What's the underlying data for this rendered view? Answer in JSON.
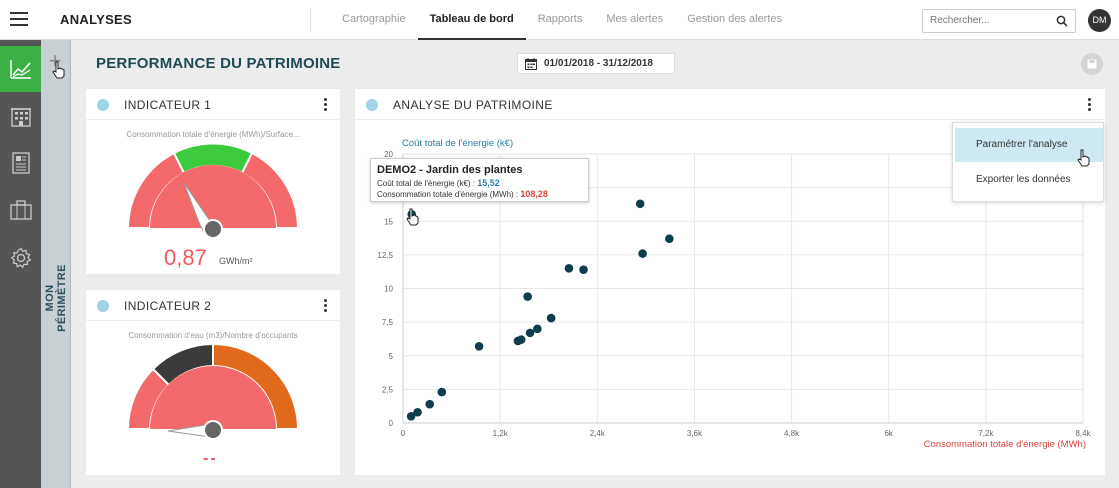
{
  "app": {
    "title": "ANALYSES"
  },
  "nav": {
    "tabs": [
      {
        "label": "Cartographie"
      },
      {
        "label": "Tableau de bord"
      },
      {
        "label": "Rapports"
      },
      {
        "label": "Mes alertes"
      },
      {
        "label": "Gestion des alertes"
      }
    ],
    "active_index": 1
  },
  "search": {
    "placeholder": "Rechercher..."
  },
  "user": {
    "initials": "DM"
  },
  "perimeter": {
    "label": "MON PÉRIMÈTRE"
  },
  "page": {
    "title": "PERFORMANCE DU PATRIMOINE",
    "date_range": "01/01/2018  -  31/12/2018"
  },
  "indicator1": {
    "title": "INDICATEUR 1",
    "subtitle": "Consommation totale d'énergie (MWh)/Surface...",
    "value": "0,87",
    "unit": "GWh/m²",
    "gauge_colors": [
      "#f46a6a",
      "#3ccb3c",
      "#f46a6a"
    ]
  },
  "indicator2": {
    "title": "INDICATEUR 2",
    "subtitle": "Consommation d'eau (m3)/Nombre d'occupants",
    "value": "--",
    "gauge_colors": [
      "#f46a6a",
      "#3a3a3a",
      "#e0691c"
    ]
  },
  "analysis": {
    "title": "ANALYSE DU PATRIMOINE",
    "menu": [
      {
        "label": "Paramétrer l'analyse"
      },
      {
        "label": "Exporter les données"
      }
    ],
    "tooltip": {
      "title": "DEMO2 - Jardin des plantes",
      "cost_label": "Coût total de l'énergie (k€) : ",
      "cost_value": "15,52",
      "cons_label": "Consommation totale d'énergie (MWh) : ",
      "cons_value": "108,28"
    }
  },
  "chart_data": {
    "type": "scatter",
    "xlabel": "Consommation totale d'énergie (MWh)",
    "ylabel": "Coût total de l'énergie (k€)",
    "xlim": [
      0,
      8400
    ],
    "ylim": [
      0,
      20
    ],
    "x_ticks": [
      0,
      1200,
      2400,
      3600,
      4800,
      6000,
      7200,
      8400
    ],
    "x_tick_labels": [
      "0",
      "1,2k",
      "2,4k",
      "3,6k",
      "4,8k",
      "6k",
      "7,2k",
      "8,4k"
    ],
    "y_ticks": [
      0,
      2.5,
      5,
      7.5,
      10,
      12.5,
      15,
      17.5,
      20
    ],
    "y_tick_labels": [
      "0",
      "2,5",
      "5",
      "7,5",
      "10",
      "12,5",
      "15",
      "17,5",
      "20"
    ],
    "grid": true,
    "point_color": "#0e3d4c",
    "points": [
      {
        "x": 108,
        "y": 15.52
      },
      {
        "x": 100,
        "y": 0.5
      },
      {
        "x": 180,
        "y": 0.8
      },
      {
        "x": 330,
        "y": 1.4
      },
      {
        "x": 480,
        "y": 2.3
      },
      {
        "x": 940,
        "y": 5.7
      },
      {
        "x": 1420,
        "y": 6.1
      },
      {
        "x": 1460,
        "y": 6.2
      },
      {
        "x": 1570,
        "y": 6.7
      },
      {
        "x": 1660,
        "y": 7.0
      },
      {
        "x": 1830,
        "y": 7.8
      },
      {
        "x": 1540,
        "y": 9.4
      },
      {
        "x": 2050,
        "y": 11.5
      },
      {
        "x": 2230,
        "y": 11.4
      },
      {
        "x": 2930,
        "y": 16.3
      },
      {
        "x": 2960,
        "y": 12.6
      },
      {
        "x": 3290,
        "y": 13.7
      }
    ]
  }
}
